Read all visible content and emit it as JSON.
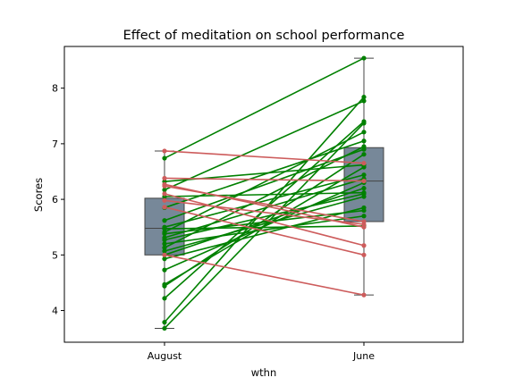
{
  "chart_data": {
    "type": "box",
    "title": "Effect of meditation on school performance",
    "xlabel": "wthn",
    "ylabel": "Scores",
    "categories": [
      "August",
      "June"
    ],
    "ylim": [
      3.43,
      8.75
    ],
    "yticks": [
      4,
      5,
      6,
      7,
      8
    ],
    "box_color": "#778899",
    "boxes": [
      {
        "category": "August",
        "whisker_low": 3.68,
        "q1": 5.0,
        "median": 5.48,
        "q3": 6.02,
        "whisker_high": 6.87
      },
      {
        "category": "June",
        "whisker_low": 4.28,
        "q1": 5.6,
        "median": 6.33,
        "q3": 6.93,
        "whisker_high": 8.54
      }
    ],
    "increase_color": "#008000",
    "decrease_color": "#cd5c5c",
    "pairs": [
      [
        3.68,
        7.37
      ],
      [
        3.79,
        7.84
      ],
      [
        4.22,
        7.4
      ],
      [
        4.44,
        6.81
      ],
      [
        4.47,
        6.58
      ],
      [
        4.73,
        6.3
      ],
      [
        4.93,
        5.85
      ],
      [
        5.0,
        6.2
      ],
      [
        5.07,
        6.05
      ],
      [
        5.13,
        6.95
      ],
      [
        5.2,
        5.7
      ],
      [
        5.27,
        6.1
      ],
      [
        5.31,
        6.37
      ],
      [
        5.38,
        5.8
      ],
      [
        5.41,
        7.21
      ],
      [
        5.47,
        5.52
      ],
      [
        5.5,
        6.44
      ],
      [
        5.62,
        6.9
      ],
      [
        5.85,
        7.05
      ],
      [
        6.05,
        6.12
      ],
      [
        6.17,
        7.77
      ],
      [
        6.32,
        6.62
      ],
      [
        6.74,
        8.54
      ],
      [
        5.0,
        4.28
      ],
      [
        5.86,
        5.0
      ],
      [
        6.1,
        5.17
      ],
      [
        6.24,
        5.6
      ],
      [
        6.27,
        5.5
      ],
      [
        6.38,
        6.33
      ],
      [
        6.87,
        6.65
      ],
      [
        5.98,
        5.55
      ]
    ]
  }
}
